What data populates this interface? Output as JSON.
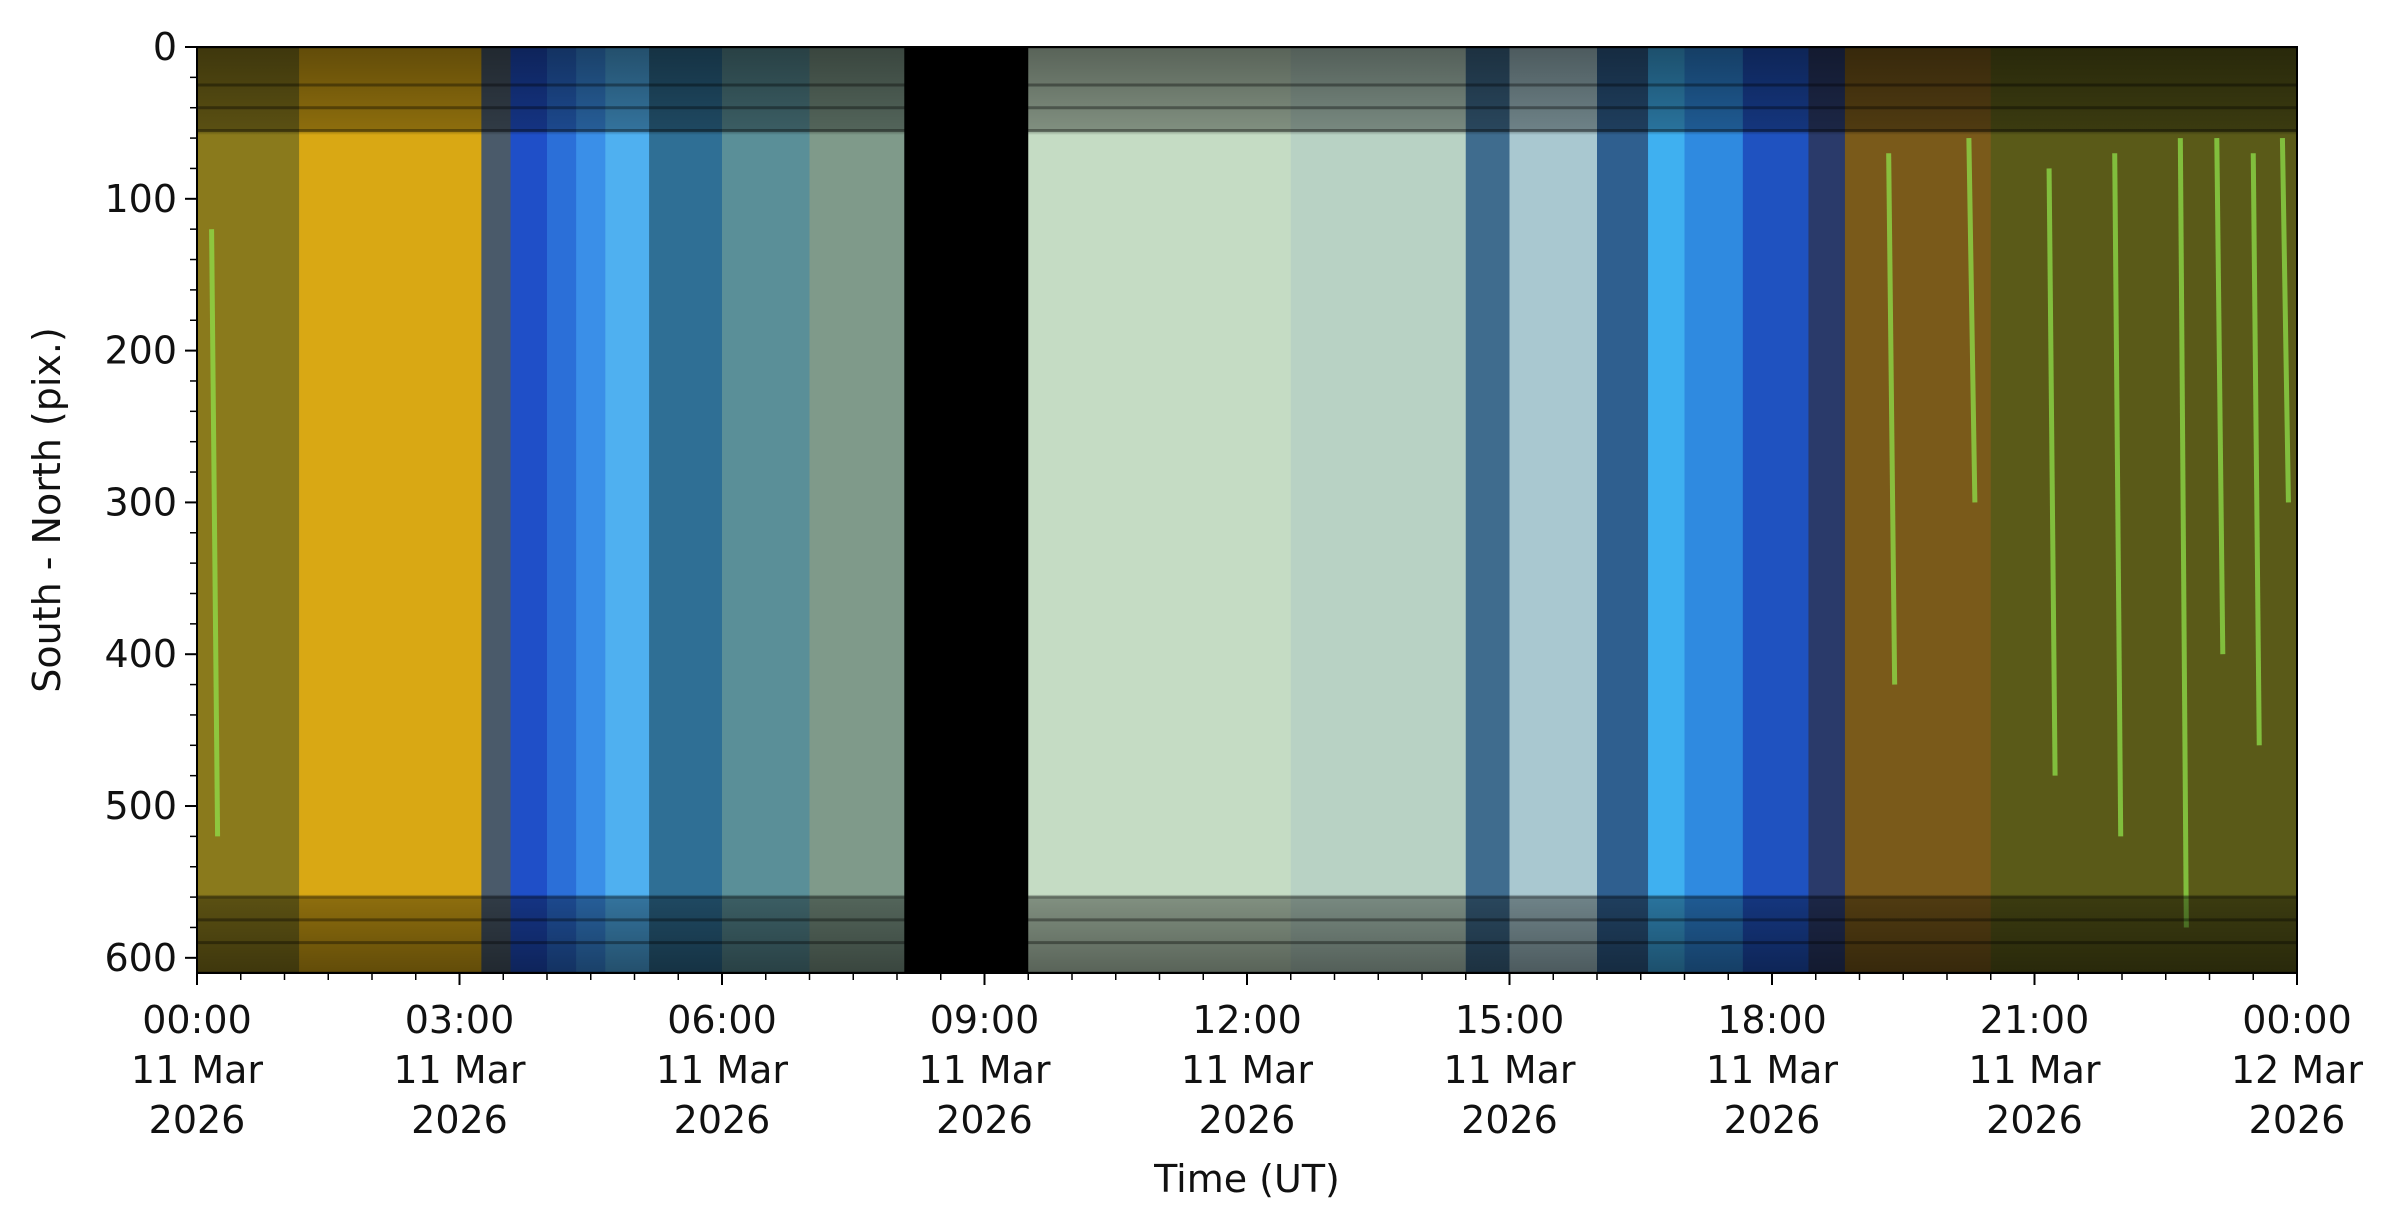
{
  "chart_data": {
    "type": "heatmap",
    "title": "",
    "xlabel": "Time (UT)",
    "ylabel": "South - North (pix.)",
    "x_start": "2026-03-11T00:00",
    "x_end": "2026-03-12T00:00",
    "ylim": [
      610,
      0
    ],
    "y_ticks": [
      0,
      100,
      200,
      300,
      400,
      500,
      600
    ],
    "x_ticks": [
      {
        "time": "2026-03-11T00:00",
        "lines": [
          "00:00",
          "11 Mar",
          "2026"
        ]
      },
      {
        "time": "2026-03-11T03:00",
        "lines": [
          "03:00",
          "11 Mar",
          "2026"
        ]
      },
      {
        "time": "2026-03-11T06:00",
        "lines": [
          "06:00",
          "11 Mar",
          "2026"
        ]
      },
      {
        "time": "2026-03-11T09:00",
        "lines": [
          "09:00",
          "11 Mar",
          "2026"
        ]
      },
      {
        "time": "2026-03-11T12:00",
        "lines": [
          "12:00",
          "11 Mar",
          "2026"
        ]
      },
      {
        "time": "2026-03-11T15:00",
        "lines": [
          "15:00",
          "11 Mar",
          "2026"
        ]
      },
      {
        "time": "2026-03-11T18:00",
        "lines": [
          "18:00",
          "11 Mar",
          "2026"
        ]
      },
      {
        "time": "2026-03-11T21:00",
        "lines": [
          "21:00",
          "11 Mar",
          "2026"
        ]
      },
      {
        "time": "2026-03-12T00:00",
        "lines": [
          "00:00",
          "12 Mar",
          "2026"
        ]
      }
    ],
    "color_segments": [
      {
        "start": "2026-03-11T00:00",
        "end": "2026-03-11T01:10",
        "color": "#8a7a1c"
      },
      {
        "start": "2026-03-11T01:10",
        "end": "2026-03-11T03:15",
        "color": "#d9a814"
      },
      {
        "start": "2026-03-11T03:15",
        "end": "2026-03-11T03:35",
        "color": "#4a5a6a"
      },
      {
        "start": "2026-03-11T03:35",
        "end": "2026-03-11T04:00",
        "color": "#1f4fc8"
      },
      {
        "start": "2026-03-11T04:00",
        "end": "2026-03-11T04:20",
        "color": "#2b6fd8"
      },
      {
        "start": "2026-03-11T04:20",
        "end": "2026-03-11T04:40",
        "color": "#3a8fe8"
      },
      {
        "start": "2026-03-11T04:40",
        "end": "2026-03-11T05:10",
        "color": "#4fb0f0"
      },
      {
        "start": "2026-03-11T05:10",
        "end": "2026-03-11T06:00",
        "color": "#2f6f95"
      },
      {
        "start": "2026-03-11T06:00",
        "end": "2026-03-11T07:00",
        "color": "#5a8f98"
      },
      {
        "start": "2026-03-11T07:00",
        "end": "2026-03-11T08:05",
        "color": "#7f9a8a"
      },
      {
        "start": "2026-03-11T08:05",
        "end": "2026-03-11T09:30",
        "color": "#000000"
      },
      {
        "start": "2026-03-11T09:30",
        "end": "2026-03-11T12:30",
        "color": "#c5dcc4"
      },
      {
        "start": "2026-03-11T12:30",
        "end": "2026-03-11T14:30",
        "color": "#b8d2c4"
      },
      {
        "start": "2026-03-11T14:30",
        "end": "2026-03-11T15:00",
        "color": "#3f6c8e"
      },
      {
        "start": "2026-03-11T15:00",
        "end": "2026-03-11T16:00",
        "color": "#a9c8d0"
      },
      {
        "start": "2026-03-11T16:00",
        "end": "2026-03-11T16:35",
        "color": "#2f5f8f"
      },
      {
        "start": "2026-03-11T16:35",
        "end": "2026-03-11T17:00",
        "color": "#3fb0f0"
      },
      {
        "start": "2026-03-11T17:00",
        "end": "2026-03-11T17:40",
        "color": "#2f8ae0"
      },
      {
        "start": "2026-03-11T17:40",
        "end": "2026-03-11T18:25",
        "color": "#1f52c0"
      },
      {
        "start": "2026-03-11T18:25",
        "end": "2026-03-11T18:50",
        "color": "#2a3a6a"
      },
      {
        "start": "2026-03-11T18:50",
        "end": "2026-03-11T20:30",
        "color": "#7a5a1a"
      },
      {
        "start": "2026-03-11T20:30",
        "end": "2026-03-12T00:00",
        "color": "#5a5a18"
      }
    ],
    "green_streaks": [
      {
        "time": "2026-03-11T19:20",
        "y": [
          70,
          420
        ]
      },
      {
        "time": "2026-03-11T20:15",
        "y": [
          60,
          300
        ]
      },
      {
        "time": "2026-03-11T21:10",
        "y": [
          80,
          480
        ]
      },
      {
        "time": "2026-03-11T21:55",
        "y": [
          70,
          520
        ]
      },
      {
        "time": "2026-03-11T22:40",
        "y": [
          60,
          580
        ]
      },
      {
        "time": "2026-03-11T23:05",
        "y": [
          60,
          400
        ]
      },
      {
        "time": "2026-03-11T23:30",
        "y": [
          70,
          460
        ]
      },
      {
        "time": "2026-03-11T23:50",
        "y": [
          60,
          300
        ]
      },
      {
        "time": "2026-03-11T00:10",
        "y": [
          120,
          520
        ]
      }
    ],
    "horizontal_band_rows": [
      0,
      25,
      40,
      55,
      560,
      575,
      590,
      610
    ],
    "grid": false,
    "legend": "none"
  }
}
